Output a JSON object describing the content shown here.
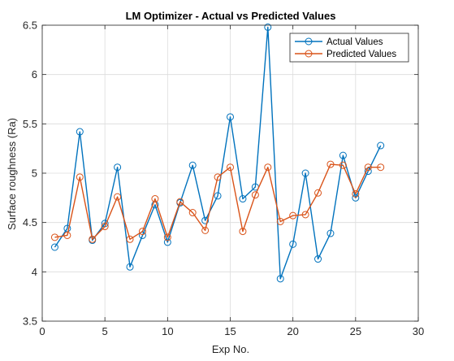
{
  "chart_data": {
    "type": "line",
    "title": "LM Optimizer - Actual vs Predicted Values",
    "xlabel": "Exp  No.",
    "ylabel": "Surface roughness (Ra)",
    "xlim": [
      0,
      30
    ],
    "ylim": [
      3.5,
      6.5
    ],
    "xticks": [
      0,
      5,
      10,
      15,
      20,
      25,
      30
    ],
    "xtick_labels": [
      "0",
      "5",
      "10",
      "15",
      "20",
      "25",
      "30"
    ],
    "yticks": [
      3.5,
      4,
      4.5,
      5,
      5.5,
      6,
      6.5
    ],
    "ytick_labels": [
      "3.5",
      "4",
      "4.5",
      "5",
      "5.5",
      "6",
      "6.5"
    ],
    "grid": true,
    "legend_position": "top-right",
    "x": [
      1,
      2,
      3,
      4,
      5,
      6,
      7,
      8,
      9,
      10,
      11,
      12,
      13,
      14,
      15,
      16,
      17,
      18,
      19,
      20,
      21,
      22,
      23,
      24,
      25,
      26,
      27
    ],
    "series": [
      {
        "name": "Actual Values",
        "color": "#0072BD",
        "marker": "circle",
        "values": [
          4.25,
          4.44,
          5.42,
          4.32,
          4.49,
          5.06,
          4.05,
          4.37,
          4.68,
          4.3,
          4.7,
          5.08,
          4.52,
          4.77,
          5.57,
          4.74,
          4.86,
          6.48,
          3.93,
          4.28,
          5.0,
          4.13,
          4.39,
          5.18,
          4.75,
          5.02,
          5.28
        ]
      },
      {
        "name": "Predicted Values",
        "color": "#D95319",
        "marker": "circle",
        "values": [
          4.35,
          4.37,
          4.96,
          4.33,
          4.46,
          4.76,
          4.33,
          4.41,
          4.74,
          4.35,
          4.71,
          4.6,
          4.42,
          4.96,
          5.06,
          4.41,
          4.78,
          5.06,
          4.51,
          4.57,
          4.58,
          4.8,
          5.09,
          5.08,
          4.79,
          5.06,
          5.06
        ]
      }
    ]
  }
}
